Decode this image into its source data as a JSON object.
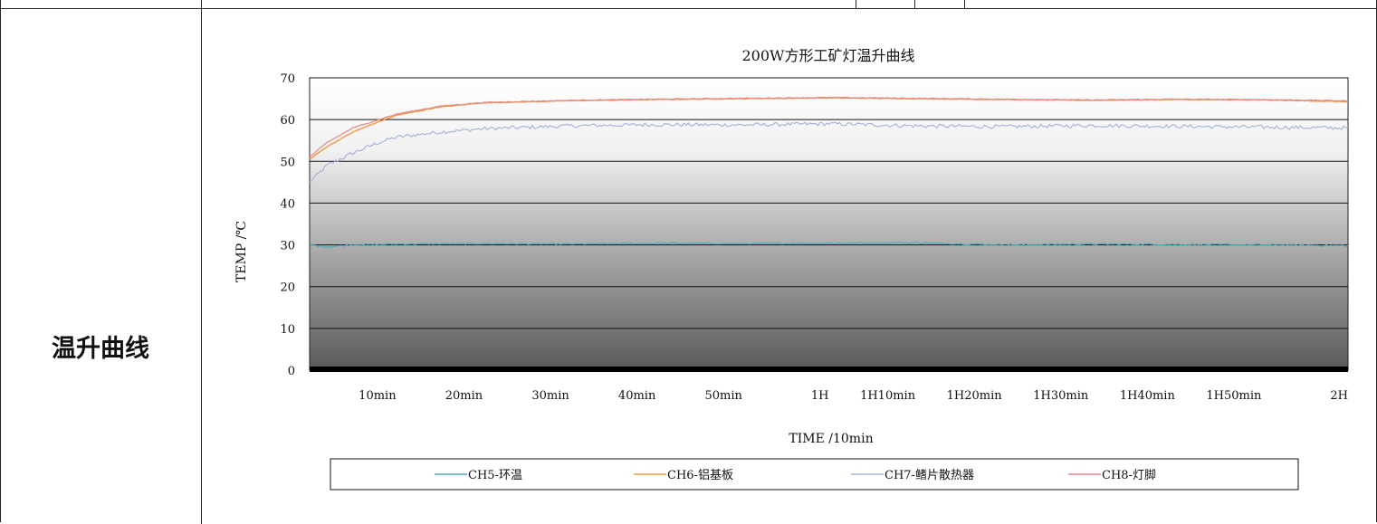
{
  "row_label": "温升曲线",
  "chart_data": {
    "type": "line",
    "title": "200W方形工矿灯温升曲线",
    "xlabel": "TIME /10min",
    "ylabel": "TEMP /℃",
    "ylim": [
      0,
      70
    ],
    "yticks": [
      0,
      10,
      20,
      30,
      40,
      50,
      60,
      70
    ],
    "xlim": [
      0,
      120
    ],
    "xtick_values": [
      10,
      20,
      30,
      40,
      50,
      60,
      70,
      80,
      90,
      100,
      110,
      120
    ],
    "xtick_labels": [
      "10min",
      "20min",
      "30min",
      "40min",
      "50min",
      "1H",
      "1H10min",
      "1H20min",
      "1H30min",
      "1H40min",
      "1H50min",
      "2H"
    ],
    "grid": true,
    "legend_position": "bottom",
    "series": [
      {
        "name": "CH5-环温",
        "color": "#4bacc6",
        "x": [
          0,
          2,
          5,
          10,
          20,
          30,
          40,
          50,
          60,
          70,
          80,
          90,
          100,
          110,
          120
        ],
        "y": [
          30.0,
          29.5,
          30.0,
          30.2,
          30.3,
          30.2,
          30.4,
          30.3,
          30.4,
          30.5,
          30.0,
          30.2,
          30.1,
          30.0,
          29.8
        ]
      },
      {
        "name": "CH6-铝基板",
        "color": "#f79646",
        "x": [
          0,
          2,
          5,
          8,
          10,
          15,
          20,
          30,
          40,
          50,
          60,
          70,
          80,
          90,
          100,
          110,
          120
        ],
        "y": [
          50.5,
          53.5,
          57.0,
          59.5,
          61.0,
          63.0,
          64.0,
          64.5,
          64.8,
          65.0,
          65.2,
          65.0,
          64.8,
          64.6,
          64.8,
          64.7,
          64.3
        ]
      },
      {
        "name": "CH7-鳍片散热器",
        "color": "#a9b6d8",
        "x": [
          0,
          2,
          5,
          8,
          10,
          15,
          20,
          30,
          40,
          50,
          60,
          70,
          80,
          90,
          100,
          110,
          120
        ],
        "y": [
          45.0,
          49.0,
          52.0,
          54.5,
          55.8,
          57.0,
          57.8,
          58.5,
          58.8,
          58.7,
          59.0,
          58.5,
          58.3,
          58.6,
          58.4,
          58.2,
          58.0
        ]
      },
      {
        "name": "CH8-灯脚",
        "color": "#e08a86",
        "x": [
          0,
          2,
          5,
          8,
          10,
          15,
          20,
          30,
          40,
          50,
          60,
          70,
          80,
          90,
          100,
          110,
          120
        ],
        "y": [
          51.0,
          54.5,
          58.0,
          60.0,
          61.3,
          63.2,
          64.1,
          64.6,
          64.9,
          65.1,
          65.3,
          65.1,
          64.9,
          64.7,
          64.9,
          64.8,
          64.5
        ]
      }
    ]
  }
}
